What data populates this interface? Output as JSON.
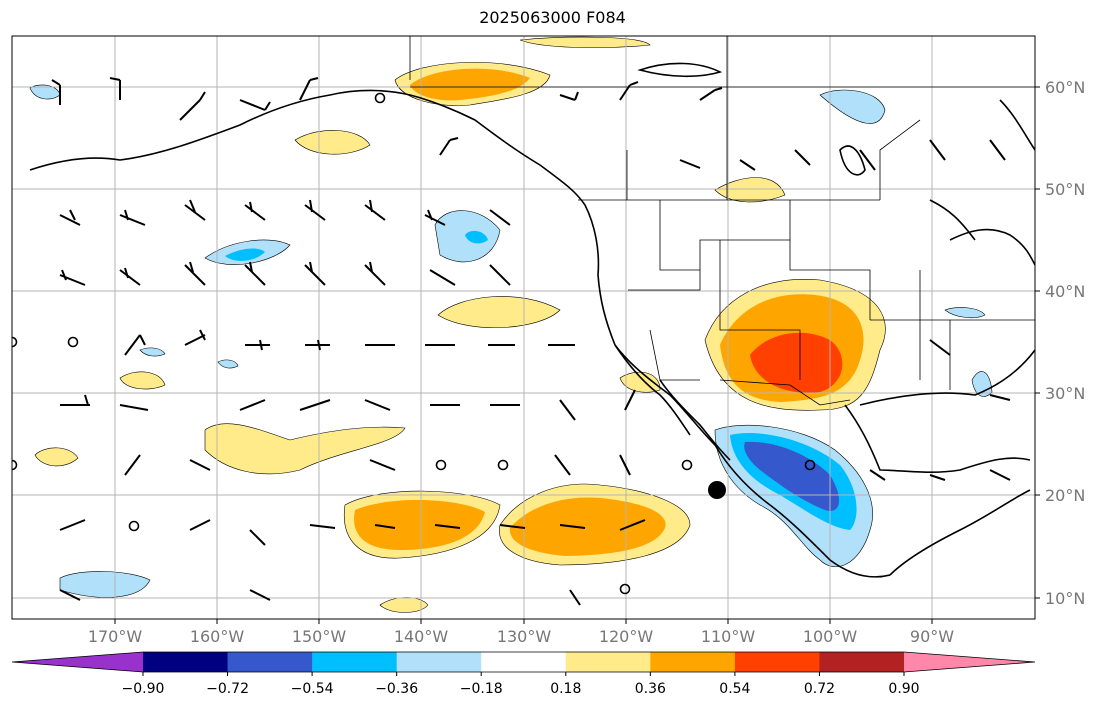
{
  "title": "2025063000 F084",
  "latitude_labels": [
    "60°N",
    "50°N",
    "40°N",
    "30°N",
    "20°N",
    "10°N"
  ],
  "longitude_labels": [
    "170°W",
    "160°W",
    "150°W",
    "140°W",
    "130°W",
    "120°W",
    "110°W",
    "100°W",
    "90°W"
  ],
  "colorbar": {
    "tick_labels": [
      "−0.90",
      "−0.72",
      "−0.54",
      "−0.36",
      "−0.18",
      "0.18",
      "0.36",
      "0.54",
      "0.72",
      "0.90"
    ],
    "colors": [
      "#9932cc",
      "#000080",
      "#3558cc",
      "#00bfff",
      "#b0e0fa",
      "#ffffff",
      "#ffeb8a",
      "#ffa500",
      "#ff4000",
      "#b22222",
      "#ff88aa"
    ],
    "extend": "both"
  },
  "map": {
    "projection": "PlateCarree",
    "extent_lon": [
      -180,
      -80
    ],
    "extent_lat": [
      8,
      65
    ],
    "gridlines": true,
    "features": [
      "coastlines",
      "country borders",
      "US state borders",
      "wind barbs",
      "filled contours"
    ]
  },
  "markers": [
    {
      "name": "black-dot",
      "lon": -111,
      "lat": 20.5
    }
  ]
}
